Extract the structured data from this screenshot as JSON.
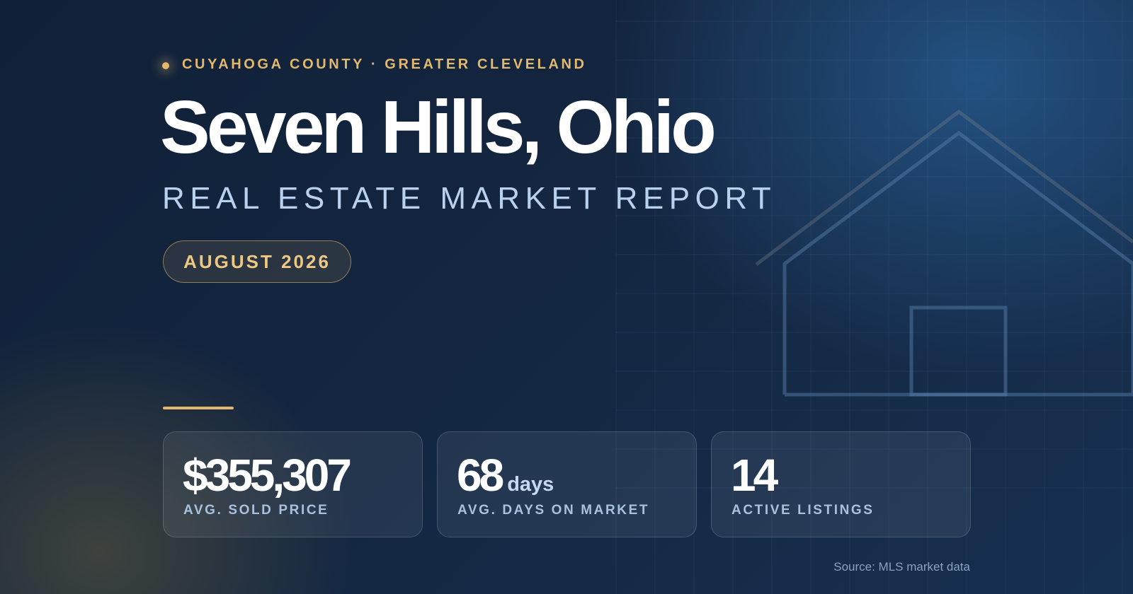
{
  "header": {
    "eyebrow": "CUYAHOGA COUNTY · GREATER CLEVELAND",
    "title": "Seven Hills, Ohio",
    "subtitle": "REAL ESTATE MARKET REPORT",
    "badge": "AUGUST 2026"
  },
  "stats": [
    {
      "value": "$355,307",
      "label": "AVG. SOLD PRICE"
    },
    {
      "value": "68",
      "unit": "days",
      "label": "AVG. DAYS ON MARKET"
    },
    {
      "value": "14",
      "label": "ACTIVE LISTINGS"
    }
  ],
  "footer": {
    "source": "Source: MLS market data"
  }
}
